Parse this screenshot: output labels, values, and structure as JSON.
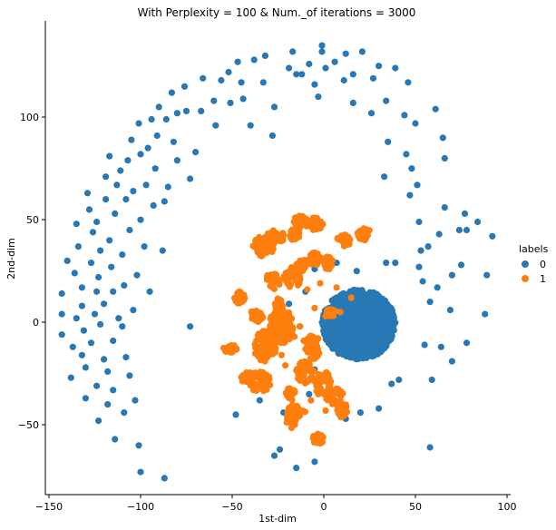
{
  "chart_data": {
    "type": "scatter",
    "title": "With Perplexity = 100 & Num._of iterations = 3000",
    "xlabel": "1st-dim",
    "ylabel": "2nd-dim",
    "xlim": [
      -152,
      102
    ],
    "ylim": [
      -84,
      147
    ],
    "xticks": [
      -150,
      -100,
      -50,
      0,
      50,
      100
    ],
    "yticks": [
      -50,
      0,
      50,
      100
    ],
    "xtick_labels": [
      "−150",
      "−100",
      "−50",
      "0",
      "50",
      "100"
    ],
    "ytick_labels": [
      "−50",
      "0",
      "50",
      "100"
    ],
    "grid": false,
    "legend": {
      "title": "labels",
      "placement": "right",
      "entries": [
        "0",
        "1"
      ]
    },
    "series": [
      {
        "name": "0",
        "color": "#2878b5",
        "points": [
          [
            -143,
            14
          ],
          [
            -143,
            4
          ],
          [
            -143,
            -6
          ],
          [
            -140,
            30
          ],
          [
            -138,
            -27
          ],
          [
            -137,
            -12
          ],
          [
            -136,
            24
          ],
          [
            -135,
            2
          ],
          [
            -135,
            48
          ],
          [
            -134,
            37
          ],
          [
            -132,
            8
          ],
          [
            -132,
            17
          ],
          [
            -132,
            -16
          ],
          [
            -131,
            -4
          ],
          [
            -130,
            -37
          ],
          [
            -130,
            -22
          ],
          [
            -129,
            63
          ],
          [
            -128,
            55
          ],
          [
            -127,
            29
          ],
          [
            -127,
            -10
          ],
          [
            -126,
            44
          ],
          [
            -125,
            4
          ],
          [
            -124,
            -31
          ],
          [
            -124,
            15
          ],
          [
            -124,
            49
          ],
          [
            -123,
            22
          ],
          [
            -123,
            -48
          ],
          [
            -122,
            -1
          ],
          [
            -122,
            35
          ],
          [
            -120,
            9
          ],
          [
            -120,
            -18
          ],
          [
            -119,
            71
          ],
          [
            -119,
            60
          ],
          [
            -118,
            -24
          ],
          [
            -118,
            -40
          ],
          [
            -117,
            81
          ],
          [
            -117,
            40
          ],
          [
            -116,
            27
          ],
          [
            -115,
            15
          ],
          [
            -115,
            -9
          ],
          [
            -115,
            -33
          ],
          [
            -114,
            53
          ],
          [
            -114,
            -57
          ],
          [
            -113,
            67
          ],
          [
            -112,
            2
          ],
          [
            -111,
            74
          ],
          [
            -110,
            33
          ],
          [
            -110,
            -2
          ],
          [
            -109,
            -44
          ],
          [
            -109,
            18
          ],
          [
            -108,
            60
          ],
          [
            -108,
            -17
          ],
          [
            -107,
            79
          ],
          [
            -106,
            45
          ],
          [
            -106,
            -26
          ],
          [
            -105,
            89
          ],
          [
            -104,
            6
          ],
          [
            -104,
            64
          ],
          [
            -103,
            -38
          ],
          [
            -102,
            23
          ],
          [
            -101,
            -60
          ],
          [
            -101,
            97
          ],
          [
            -100,
            50
          ],
          [
            -100,
            -73
          ],
          [
            -100,
            82
          ],
          [
            -98,
            37
          ],
          [
            -97,
            67
          ],
          [
            -96,
            85
          ],
          [
            -95,
            15
          ],
          [
            -94,
            99
          ],
          [
            -93,
            57
          ],
          [
            -92,
            75
          ],
          [
            -91,
            91
          ],
          [
            -90,
            105
          ],
          [
            -88,
            35
          ],
          [
            -87,
            59
          ],
          [
            -87,
            -76
          ],
          [
            -86,
            99
          ],
          [
            -85,
            66
          ],
          [
            -83,
            112
          ],
          [
            -82,
            88
          ],
          [
            -80,
            102
          ],
          [
            -80,
            79
          ],
          [
            -76,
            115
          ],
          [
            -75,
            103
          ],
          [
            -73,
            -2
          ],
          [
            -73,
            70
          ],
          [
            -70,
            83
          ],
          [
            -67,
            103
          ],
          [
            -66,
            119
          ],
          [
            -60,
            108
          ],
          [
            -59,
            96
          ],
          [
            -56,
            118
          ],
          [
            -52,
            122
          ],
          [
            -51,
            107
          ],
          [
            -47,
            127
          ],
          [
            -45,
            117
          ],
          [
            -44,
            109
          ],
          [
            -40,
            96
          ],
          [
            -38,
            128
          ],
          [
            -33,
            117
          ],
          [
            -32,
            130
          ],
          [
            -28,
            91
          ],
          [
            -27,
            105
          ],
          [
            -19,
            124
          ],
          [
            -17,
            132
          ],
          [
            -15,
            121
          ],
          [
            -12,
            121
          ],
          [
            -8,
            126
          ],
          [
            -5,
            116
          ],
          [
            -3,
            110
          ],
          [
            -1,
            135
          ],
          [
            -1,
            132
          ],
          [
            1,
            124
          ],
          [
            6,
            127
          ],
          [
            11,
            118
          ],
          [
            12,
            131
          ],
          [
            16,
            107
          ],
          [
            16,
            121
          ],
          [
            21,
            132
          ],
          [
            26,
            102
          ],
          [
            27,
            119
          ],
          [
            30,
            125
          ],
          [
            33,
            71
          ],
          [
            34,
            108
          ],
          [
            35,
            88
          ],
          [
            39,
            124
          ],
          [
            44,
            101
          ],
          [
            45,
            82
          ],
          [
            46,
            117
          ],
          [
            47,
            62
          ],
          [
            48,
            75
          ],
          [
            50,
            97
          ],
          [
            51,
            67
          ],
          [
            52,
            49
          ],
          [
            52,
            27
          ],
          [
            53,
            35
          ],
          [
            54,
            20
          ],
          [
            55,
            -11
          ],
          [
            57,
            37
          ],
          [
            58,
            10
          ],
          [
            59,
            -28
          ],
          [
            61,
            104
          ],
          [
            62,
            17
          ],
          [
            63,
            43
          ],
          [
            64,
            -12
          ],
          [
            65,
            90
          ],
          [
            66,
            80
          ],
          [
            66,
            56
          ],
          [
            69,
            6
          ],
          [
            70,
            -19
          ],
          [
            70,
            23
          ],
          [
            74,
            45
          ],
          [
            75,
            28
          ],
          [
            77,
            53
          ],
          [
            78,
            45
          ],
          [
            78,
            -10
          ],
          [
            84,
            49
          ],
          [
            88,
            4
          ],
          [
            89,
            23
          ],
          [
            92,
            42
          ],
          [
            58,
            -61
          ],
          [
            41,
            -28
          ],
          [
            37,
            -30
          ],
          [
            30,
            -42
          ],
          [
            20,
            -44
          ],
          [
            -5,
            -23
          ],
          [
            -8,
            -35
          ],
          [
            -18,
            -49
          ],
          [
            -24,
            -62
          ],
          [
            -27,
            -65
          ],
          [
            -15,
            -71
          ],
          [
            -5,
            -68
          ],
          [
            -48,
            -45
          ],
          [
            -35,
            -38
          ],
          [
            -22,
            -44
          ],
          [
            12,
            -47
          ],
          [
            -10,
            30
          ],
          [
            -5,
            26
          ],
          [
            0,
            30
          ],
          [
            7,
            29
          ],
          [
            18,
            25
          ],
          [
            34,
            29
          ],
          [
            39,
            29
          ],
          [
            28,
            7
          ],
          [
            15,
            5
          ],
          [
            -13,
            -2
          ],
          [
            -10,
            15
          ],
          [
            -19,
            9
          ]
        ],
        "cluster": {
          "center": [
            19,
            -1
          ],
          "radii": [
            20,
            17
          ],
          "count": 1300,
          "seed": 7
        }
      },
      {
        "name": "1",
        "color": "#ff7f0e",
        "points": [
          [
            -9,
            16
          ],
          [
            -5,
            7
          ],
          [
            -2,
            19
          ],
          [
            3,
            26
          ],
          [
            7,
            17
          ],
          [
            9,
            5
          ],
          [
            15,
            12
          ],
          [
            -11,
            -9
          ],
          [
            -8,
            -19
          ],
          [
            -6,
            -27
          ],
          [
            -3,
            -35
          ],
          [
            1,
            -43
          ],
          [
            -23,
            -16
          ],
          [
            -21,
            -21
          ],
          [
            -16,
            -7
          ],
          [
            -13,
            -2
          ],
          [
            -10,
            -13
          ],
          [
            -7,
            -38
          ],
          [
            -4,
            -8
          ],
          [
            1,
            3
          ]
        ],
        "clusters": [
          {
            "center": [
              -35,
              -29
            ],
            "radii": [
              6,
              5
            ],
            "count": 55
          },
          {
            "center": [
              -32,
              -12
            ],
            "radii": [
              6,
              8
            ],
            "count": 70
          },
          {
            "center": [
              -23,
              -2
            ],
            "radii": [
              7,
              9
            ],
            "count": 90
          },
          {
            "center": [
              -17,
              22
            ],
            "radii": [
              5,
              5
            ],
            "count": 45
          },
          {
            "center": [
              -28,
              20
            ],
            "radii": [
              4,
              4
            ],
            "count": 40
          },
          {
            "center": [
              -33,
              37
            ],
            "radii": [
              6,
              5
            ],
            "count": 50
          },
          {
            "center": [
              -26,
              42
            ],
            "radii": [
              5,
              3
            ],
            "count": 35
          },
          {
            "center": [
              -16,
              43
            ],
            "radii": [
              3,
              3
            ],
            "count": 25
          },
          {
            "center": [
              -12,
              28
            ],
            "radii": [
              3,
              3
            ],
            "count": 25
          },
          {
            "center": [
              -15,
              -43
            ],
            "radii": [
              5,
              3
            ],
            "count": 40
          },
          {
            "center": [
              -18,
              -48
            ],
            "radii": [
              3,
              4
            ],
            "count": 30
          },
          {
            "center": [
              -10,
              -24
            ],
            "radii": [
              5,
              6
            ],
            "count": 50
          },
          {
            "center": [
              -6,
              -12
            ],
            "radii": [
              4,
              6
            ],
            "count": 50
          },
          {
            "center": [
              0,
              -30
            ],
            "radii": [
              5,
              6
            ],
            "count": 50
          },
          {
            "center": [
              6,
              -36
            ],
            "radii": [
              5,
              4
            ],
            "count": 40
          },
          {
            "center": [
              10,
              -43
            ],
            "radii": [
              3,
              4
            ],
            "count": 25
          },
          {
            "center": [
              -3,
              -57
            ],
            "radii": [
              3,
              3
            ],
            "count": 20
          },
          {
            "center": [
              -5,
              48
            ],
            "radii": [
              5,
              3
            ],
            "count": 40
          },
          {
            "center": [
              -13,
              49
            ],
            "radii": [
              4,
              3
            ],
            "count": 30
          },
          {
            "center": [
              -5,
              31
            ],
            "radii": [
              4,
              3
            ],
            "count": 30
          },
          {
            "center": [
              2,
              29
            ],
            "radii": [
              3,
              3
            ],
            "count": 25
          },
          {
            "center": [
              11,
              40
            ],
            "radii": [
              4,
              3
            ],
            "count": 30
          },
          {
            "center": [
              22,
              43
            ],
            "radii": [
              4,
              3
            ],
            "count": 30
          },
          {
            "center": [
              -46,
              12
            ],
            "radii": [
              3,
              3
            ],
            "count": 25
          },
          {
            "center": [
              -37,
              3
            ],
            "radii": [
              4,
              3
            ],
            "count": 30
          },
          {
            "center": [
              -51,
              -13
            ],
            "radii": [
              4,
              2
            ],
            "count": 30
          },
          {
            "center": [
              -42,
              -27
            ],
            "radii": [
              3,
              3
            ],
            "count": 25
          },
          {
            "center": [
              -18,
              -35
            ],
            "radii": [
              3,
              3
            ],
            "count": 25
          },
          {
            "center": [
              4,
              5
            ],
            "radii": [
              3,
              2
            ],
            "count": 20
          },
          {
            "center": [
              -25,
              8
            ],
            "radii": [
              3,
              4
            ],
            "count": 25
          }
        ]
      }
    ]
  }
}
